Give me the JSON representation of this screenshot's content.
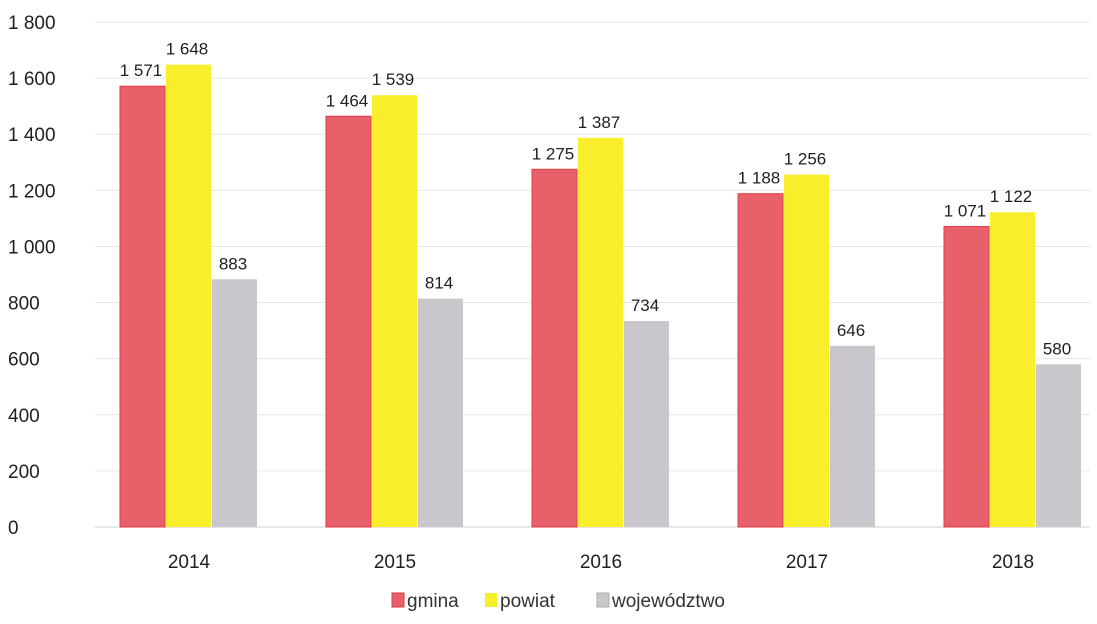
{
  "chart_data": {
    "type": "bar",
    "title": "",
    "xlabel": "",
    "ylabel": "",
    "categories": [
      "2014",
      "2015",
      "2016",
      "2017",
      "2018"
    ],
    "series": [
      {
        "name": "gmina",
        "values": [
          1571,
          1464,
          1275,
          1188,
          1071
        ],
        "labels": [
          "1 571",
          "1 464",
          "1 275",
          "1 188",
          "1 071"
        ],
        "color": "#e8606a"
      },
      {
        "name": "powiat",
        "values": [
          1648,
          1539,
          1387,
          1256,
          1122
        ],
        "labels": [
          "1 648",
          "1 539",
          "1 387",
          "1 256",
          "1 122"
        ],
        "color": "#f8ee2c"
      },
      {
        "name": "województwo",
        "values": [
          883,
          814,
          734,
          646,
          580
        ],
        "labels": [
          "883",
          "814",
          "734",
          "646",
          "580"
        ],
        "color": "#c9c6cc"
      }
    ],
    "ylim": [
      0,
      1800
    ],
    "yticks": [
      0,
      200,
      400,
      600,
      800,
      1000,
      1200,
      1400,
      1600,
      1800
    ],
    "ytick_labels": [
      "0",
      "200",
      "400",
      "600",
      "800",
      "1 000",
      "1 200",
      "1 400",
      "1 600",
      "1 800"
    ],
    "grid": true,
    "legend_position": "bottom"
  }
}
